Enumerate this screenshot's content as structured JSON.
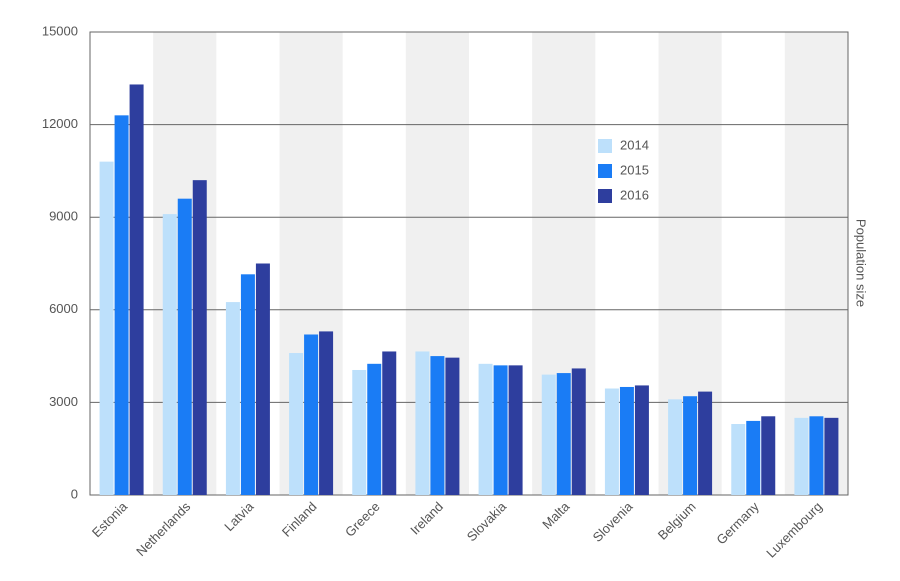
{
  "chart_data": {
    "type": "bar",
    "y_label": "Population size",
    "categories": [
      "Estonia",
      "Netherlands",
      "Latvia",
      "Finland",
      "Greece",
      "Ireland",
      "Slovakia",
      "Malta",
      "Slovenia",
      "Belgium",
      "Germany",
      "Luxembourg"
    ],
    "series": [
      {
        "name": "2014",
        "color": "#bde0fb",
        "values": [
          10800,
          9100,
          6250,
          4600,
          4050,
          4650,
          4250,
          3900,
          3450,
          3100,
          2300,
          2500
        ]
      },
      {
        "name": "2015",
        "color": "#1a7cf5",
        "values": [
          12300,
          9600,
          7150,
          5200,
          4250,
          4500,
          4200,
          3950,
          3500,
          3200,
          2400,
          2550
        ]
      },
      {
        "name": "2016",
        "color": "#2e3e9e",
        "values": [
          13300,
          10200,
          7500,
          5300,
          4650,
          4450,
          4200,
          4100,
          3550,
          3350,
          2550,
          2500
        ]
      }
    ],
    "ylim": [
      0,
      15000
    ],
    "yticks": [
      0,
      3000,
      6000,
      9000,
      12000,
      15000
    ],
    "grid": true,
    "legend_position": "upper right"
  }
}
